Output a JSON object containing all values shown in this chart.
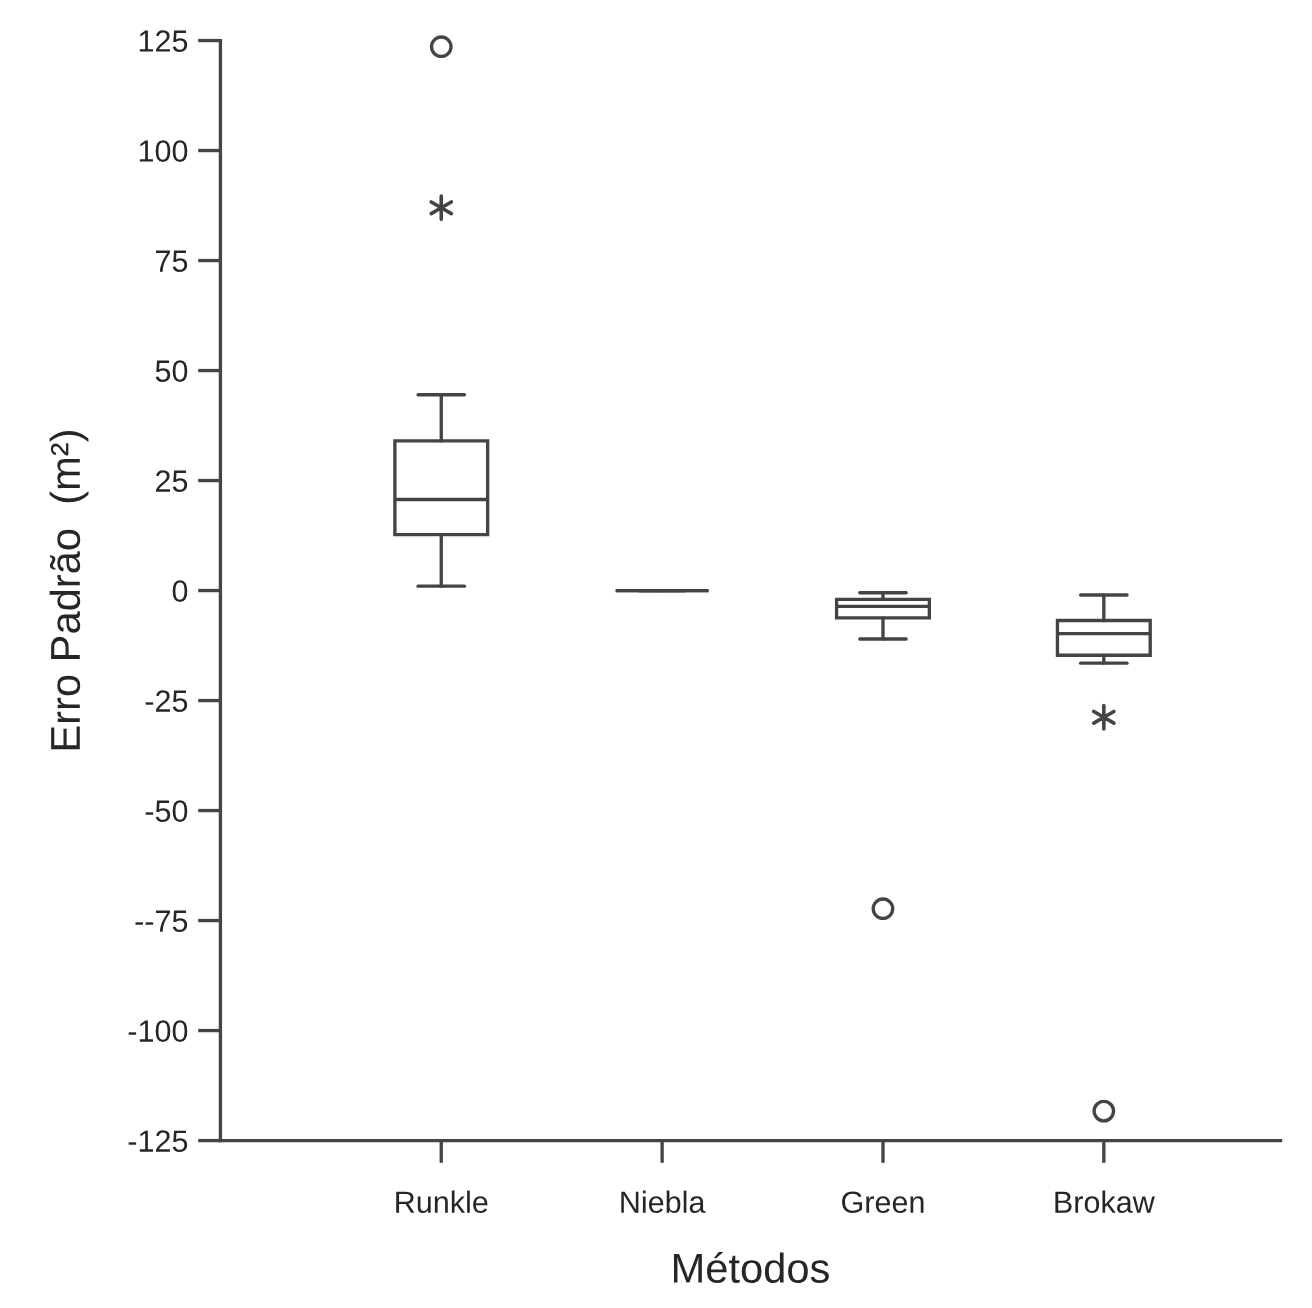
{
  "chart_data": {
    "type": "box",
    "xlabel": "Métodos",
    "ylabel": "Erro Padrão  (m²)",
    "categories": [
      "Runkle",
      "Niebla",
      "Green",
      "Brokaw"
    ],
    "boxes": [
      {
        "low": 1,
        "q1": 12.7,
        "median": 20.7,
        "q3": 34,
        "high": 44.5,
        "outliers": [
          123.6
        ]
      },
      {
        "low": 0,
        "q1": 0,
        "median": 0,
        "q3": 0,
        "high": 0
      },
      {
        "low": -11,
        "q1": -6.2,
        "median": -3.6,
        "q3": -2,
        "high": -0.5,
        "outliers": [
          -72.3
        ]
      },
      {
        "low": -16.5,
        "q1": -14.7,
        "median": -9.8,
        "q3": -6.8,
        "high": -1,
        "outliers": [
          -118.3
        ]
      }
    ],
    "series": [
      {
        "type": "scatter",
        "marker": "cross",
        "color": "#444444",
        "values": [
          87,
          null,
          null,
          -28.8
        ]
      }
    ],
    "ylim": [
      -125,
      125
    ],
    "yticks": [
      125,
      100,
      75,
      50,
      25,
      0,
      -25,
      -50,
      {
        "value": -75,
        "label": "--75"
      },
      -100,
      -125
    ],
    "color": "#444444",
    "grid": false,
    "legend": false
  }
}
